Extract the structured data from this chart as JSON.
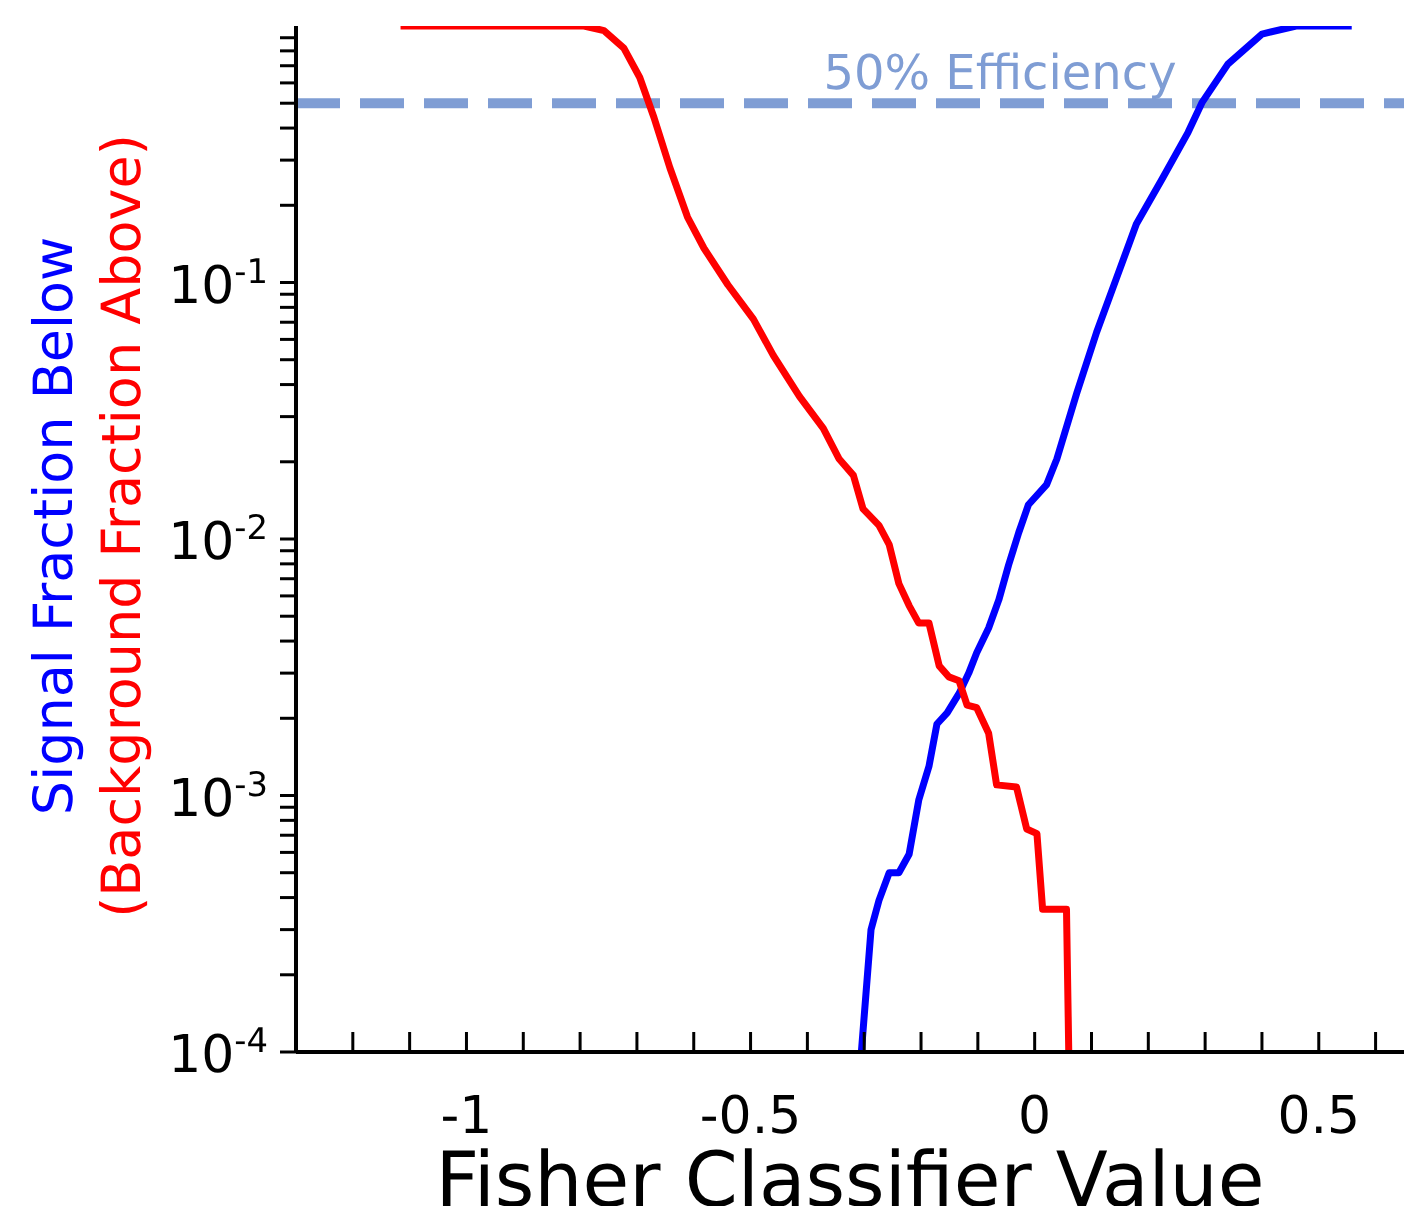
{
  "chart_data": {
    "type": "line",
    "xlabel": "Fisher Classifier Value",
    "xlim": [
      -1.3,
      0.65
    ],
    "xticks": [
      {
        "value": -1.2,
        "label": null
      },
      {
        "value": -1.1,
        "label": null
      },
      -1,
      {
        "value": -0.9,
        "label": null
      },
      {
        "value": -0.8,
        "label": null
      },
      {
        "value": -0.7,
        "label": null
      },
      {
        "value": -0.6,
        "label": null
      },
      -0.5,
      {
        "value": -0.4,
        "label": null
      },
      {
        "value": -0.3,
        "label": null
      },
      {
        "value": -0.2,
        "label": null
      },
      {
        "value": -0.1,
        "label": null
      },
      0,
      {
        "value": 0.1,
        "label": null
      },
      {
        "value": 0.2,
        "label": null
      },
      {
        "value": 0.3,
        "label": null
      },
      {
        "value": 0.4,
        "label": null
      },
      0.5,
      {
        "value": 0.6,
        "label": null
      }
    ],
    "log": "y",
    "ylim": [
      0.0001,
      1
    ],
    "yticks": [
      {
        "value": 0.0001,
        "label": "10$^{-4}$"
      },
      {
        "value": 0.0002,
        "label": null
      },
      {
        "value": 0.0003,
        "label": null
      },
      {
        "value": 0.0004,
        "label": null
      },
      {
        "value": 0.0005,
        "label": null
      },
      {
        "value": 0.0006,
        "label": null
      },
      {
        "value": 0.0007,
        "label": null
      },
      {
        "value": 0.0008,
        "label": null
      },
      {
        "value": 0.0009,
        "label": null
      },
      {
        "value": 0.001,
        "label": "10$^{-3}$"
      },
      {
        "value": 0.002,
        "label": null
      },
      {
        "value": 0.003,
        "label": null
      },
      {
        "value": 0.004,
        "label": null
      },
      {
        "value": 0.005,
        "label": null
      },
      {
        "value": 0.006,
        "label": null
      },
      {
        "value": 0.007,
        "label": null
      },
      {
        "value": 0.008,
        "label": null
      },
      {
        "value": 0.009,
        "label": null
      },
      {
        "value": 0.01,
        "label": "10$^{-2}$"
      },
      {
        "value": 0.02,
        "label": null
      },
      {
        "value": 0.03,
        "label": null
      },
      {
        "value": 0.04,
        "label": null
      },
      {
        "value": 0.05,
        "label": null
      },
      {
        "value": 0.06,
        "label": null
      },
      {
        "value": 0.07,
        "label": null
      },
      {
        "value": 0.08,
        "label": null
      },
      {
        "value": 0.09,
        "label": null
      },
      {
        "value": 0.1,
        "label": "10$^{-1}$"
      },
      {
        "value": 0.2,
        "label": null
      },
      {
        "value": 0.3,
        "label": null
      },
      {
        "value": 0.4,
        "label": null
      },
      {
        "value": 0.5,
        "label": null
      },
      {
        "value": 0.6,
        "label": null
      },
      {
        "value": 0.7,
        "label": null
      },
      {
        "value": 0.8,
        "label": null
      },
      {
        "value": 0.9,
        "label": null
      }
    ],
    "grid": false,
    "legend": false,
    "marker": "none",
    "line_style": "solid",
    "ref_lines": [
      {
        "axis": "y",
        "value": 0.5,
        "label": "50% Efficiency",
        "color": "#7f9dd4",
        "line_style": "dashed"
      }
    ],
    "series": [
      {
        "name": "Signal Fraction Below",
        "color": "#0000ff",
        "x": [
          -0.305,
          -0.288,
          -0.274,
          -0.256,
          -0.239,
          -0.221,
          -0.204,
          -0.186,
          -0.172,
          -0.154,
          -0.133,
          -0.116,
          -0.102,
          -0.081,
          -0.063,
          -0.046,
          -0.028,
          -0.011,
          0.021,
          0.039,
          0.074,
          0.109,
          0.144,
          0.179,
          0.225,
          0.27,
          0.295,
          0.34,
          0.4,
          0.46,
          0.558
        ],
        "values": [
          0.0001,
          0.0003,
          0.00039,
          0.0005,
          0.0005,
          0.00059,
          0.00096,
          0.0013,
          0.0019,
          0.0021,
          0.0025,
          0.003,
          0.0036,
          0.0045,
          0.0058,
          0.0079,
          0.0106,
          0.0136,
          0.0163,
          0.0205,
          0.037,
          0.064,
          0.104,
          0.169,
          0.255,
          0.385,
          0.505,
          0.71,
          0.93,
          1,
          1
        ]
      },
      {
        "name": "(Background Fraction Above)",
        "color": "#ff0000",
        "x": [
          -1.116,
          -0.793,
          -0.758,
          -0.723,
          -0.695,
          -0.67,
          -0.642,
          -0.611,
          -0.582,
          -0.54,
          -0.495,
          -0.46,
          -0.414,
          -0.372,
          -0.344,
          -0.319,
          -0.302,
          -0.274,
          -0.256,
          -0.239,
          -0.221,
          -0.204,
          -0.186,
          -0.168,
          -0.151,
          -0.133,
          -0.119,
          -0.102,
          -0.081,
          -0.067,
          -0.032,
          -0.014,
          0.004,
          0.014,
          0.056,
          0.06
        ],
        "values": [
          1,
          1,
          0.96,
          0.82,
          0.63,
          0.44,
          0.28,
          0.18,
          0.136,
          0.098,
          0.072,
          0.052,
          0.036,
          0.027,
          0.0205,
          0.0177,
          0.0131,
          0.0113,
          0.0095,
          0.0067,
          0.0055,
          0.0047,
          0.0047,
          0.0032,
          0.0029,
          0.0028,
          0.00225,
          0.0022,
          0.00175,
          0.0011,
          0.00108,
          0.00074,
          0.00071,
          0.00036,
          0.00036,
          0.0001
        ]
      }
    ]
  }
}
